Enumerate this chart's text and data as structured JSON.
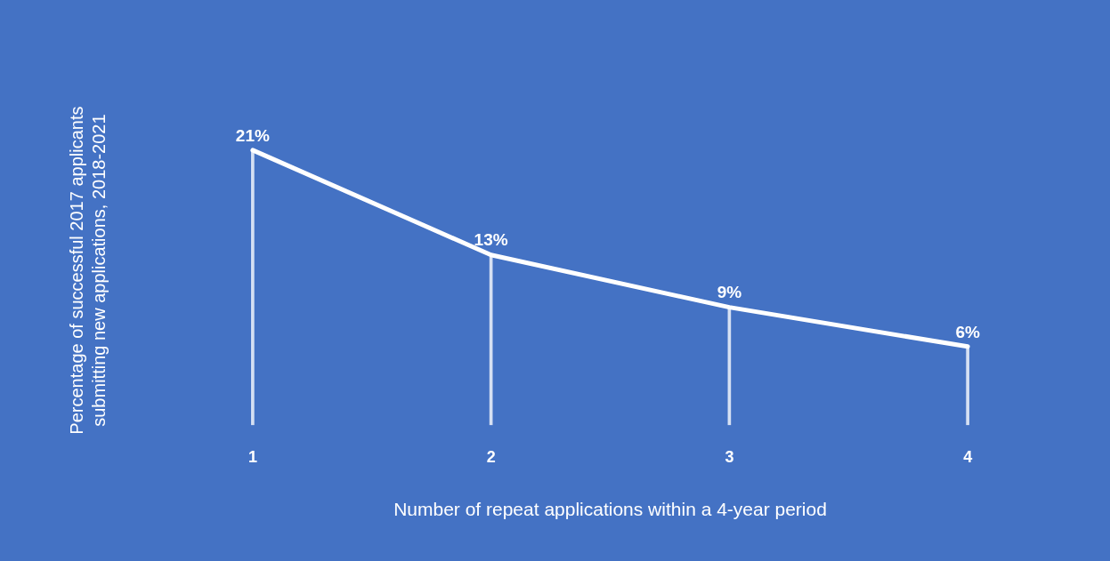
{
  "chart_data": {
    "type": "line",
    "xlabel": "Number of repeat applications within a 4-year period",
    "ylabel": "Percentage of successful 2017 applicants submitting new applications, 2018-2021",
    "categories": [
      "1",
      "2",
      "3",
      "4"
    ],
    "series": [
      {
        "type": "bar",
        "color": "#d6e0f3",
        "values": [
          21,
          13,
          9,
          6
        ]
      },
      {
        "color": "#ffffff",
        "values": [
          21,
          13,
          9,
          6
        ],
        "value_labels": [
          "21%",
          "13%",
          "9%",
          "6%"
        ]
      }
    ],
    "tick_labels": "x",
    "grid": false,
    "legend": false,
    "line_style": "solid"
  }
}
